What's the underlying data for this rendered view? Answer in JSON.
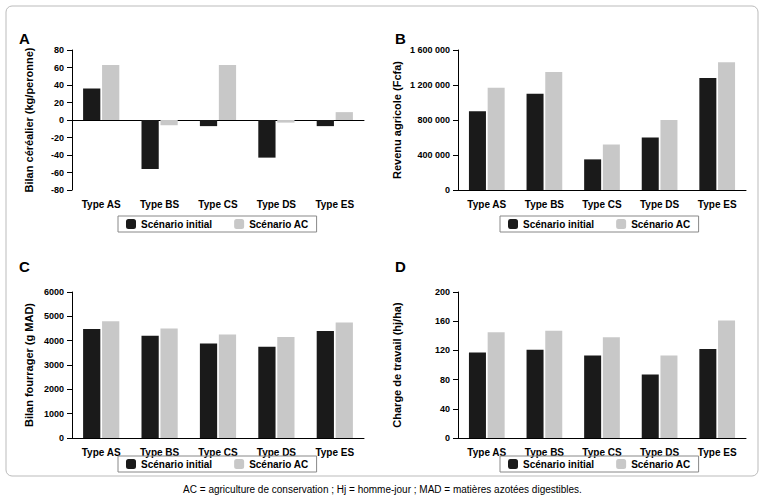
{
  "chart_data": [
    {
      "type": "bar",
      "title": "A",
      "y_label": "Bilan céréalier (kg/peronne)",
      "categories": [
        "Type AS",
        "Type BS",
        "Type CS",
        "Type DS",
        "Type ES"
      ],
      "series": [
        {
          "name": "Scénario initial",
          "color": "#1a1a1a",
          "values": [
            36,
            -56,
            -7,
            -43,
            -7
          ]
        },
        {
          "name": "Scénario AC",
          "color": "#c8c8c8",
          "values": [
            63,
            -6,
            63,
            -3,
            9
          ]
        }
      ],
      "ylim": [
        -80,
        80
      ],
      "yticks": [
        -80,
        -60,
        -40,
        -20,
        0,
        20,
        40,
        60,
        80
      ],
      "grid": false,
      "legend": "bottom"
    },
    {
      "type": "bar",
      "title": "B",
      "y_label": "Revenu agricole (Fcfa)",
      "categories": [
        "Type AS",
        "Type BS",
        "Type CS",
        "Type DS",
        "Type ES"
      ],
      "series": [
        {
          "name": "Scénario initial",
          "color": "#1a1a1a",
          "values": [
            900000,
            1100000,
            350000,
            600000,
            1280000
          ]
        },
        {
          "name": "Scénario AC",
          "color": "#c8c8c8",
          "values": [
            1170000,
            1350000,
            520000,
            800000,
            1460000
          ]
        }
      ],
      "ylim": [
        0,
        1600000
      ],
      "yticks": [
        0,
        {
          "value": 400000,
          "label": "400 000"
        },
        {
          "value": 800000,
          "label": "800 000"
        },
        {
          "value": 1200000,
          "label": "1 200 000"
        },
        {
          "value": 1600000,
          "label": "1 600 000"
        }
      ],
      "grid": false,
      "legend": "bottom"
    },
    {
      "type": "bar",
      "title": "C",
      "y_label": "Bilan fourrager (g MAD)",
      "categories": [
        "Type AS",
        "Type BS",
        "Type CS",
        "Type DS",
        "Type ES"
      ],
      "series": [
        {
          "name": "Scénario initial",
          "color": "#1a1a1a",
          "values": [
            4480,
            4200,
            3880,
            3750,
            4400
          ]
        },
        {
          "name": "Scénario AC",
          "color": "#c8c8c8",
          "values": [
            4800,
            4500,
            4250,
            4150,
            4750
          ]
        }
      ],
      "ylim": [
        0,
        6000
      ],
      "yticks": [
        0,
        1000,
        2000,
        3000,
        4000,
        5000,
        6000
      ],
      "grid": false,
      "legend": "bottom"
    },
    {
      "type": "bar",
      "title": "D",
      "y_label": "Charge de travail (hj/ha)",
      "categories": [
        "Type AS",
        "Type BS",
        "Type CS",
        "Type DS",
        "Type ES"
      ],
      "series": [
        {
          "name": "Scénario initial",
          "color": "#1a1a1a",
          "values": [
            117,
            121,
            113,
            87,
            122
          ]
        },
        {
          "name": "Scénario AC",
          "color": "#c8c8c8",
          "values": [
            145,
            147,
            138,
            113,
            161
          ]
        }
      ],
      "ylim": [
        0,
        200
      ],
      "yticks": [
        0,
        40,
        80,
        120,
        160,
        200
      ],
      "grid": false,
      "legend": "bottom"
    }
  ],
  "caption": "AC = agriculture de conservation ; Hj = homme-jour ; MAD = matières azotées digestibles."
}
